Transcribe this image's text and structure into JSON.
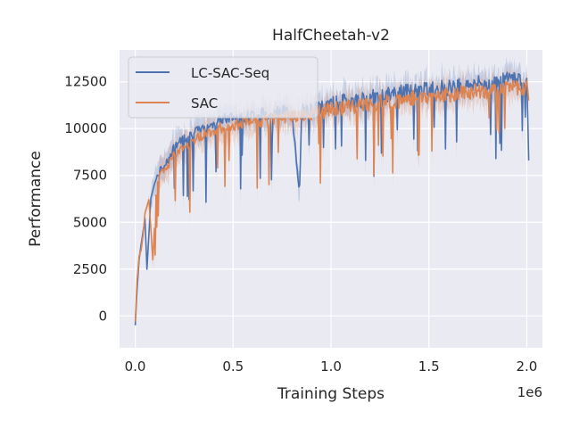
{
  "chart_data": {
    "type": "line",
    "title": "HalfCheetah-v2",
    "xlabel": "Training Steps",
    "ylabel": "Performance",
    "x_offset_label": "1e6",
    "xlim": [
      -0.08,
      2.08
    ],
    "ylim": [
      -1700,
      14200
    ],
    "xticks": [
      0.0,
      0.5,
      1.0,
      1.5,
      2.0
    ],
    "xtick_labels": [
      "0.0",
      "0.5",
      "1.0",
      "1.5",
      "2.0"
    ],
    "yticks": [
      0,
      2500,
      5000,
      7500,
      10000,
      12500
    ],
    "ytick_labels": [
      "0",
      "2500",
      "5000",
      "7500",
      "10000",
      "12500"
    ],
    "grid": true,
    "legend_position": "top-left",
    "x_scale_factor": 1000000,
    "series": [
      {
        "name": "LC-SAC-Seq",
        "color": "#4c72b0",
        "band_color": "#4c72b0",
        "x": [
          0.0,
          0.01,
          0.02,
          0.03,
          0.04,
          0.05,
          0.06,
          0.08,
          0.1,
          0.12,
          0.15,
          0.18,
          0.2,
          0.25,
          0.3,
          0.35,
          0.4,
          0.45,
          0.5,
          0.55,
          0.6,
          0.65,
          0.7,
          0.75,
          0.8,
          0.84,
          0.85,
          0.86,
          0.9,
          0.95,
          1.0,
          1.05,
          1.1,
          1.15,
          1.2,
          1.25,
          1.3,
          1.35,
          1.4,
          1.45,
          1.5,
          1.55,
          1.6,
          1.65,
          1.7,
          1.75,
          1.8,
          1.85,
          1.9,
          1.95,
          2.0,
          2.01
        ],
        "y": [
          -500,
          1500,
          3000,
          3800,
          4500,
          5200,
          2500,
          6300,
          7100,
          7600,
          8100,
          8500,
          9100,
          9500,
          9800,
          10000,
          10300,
          10500,
          10600,
          10600,
          10700,
          10800,
          10900,
          10900,
          10900,
          6700,
          10800,
          11000,
          11000,
          11100,
          11300,
          11400,
          11500,
          11500,
          11700,
          11700,
          11800,
          11900,
          12000,
          12000,
          12100,
          12200,
          12200,
          12300,
          12300,
          12400,
          12400,
          12500,
          12600,
          12700,
          12600,
          8300
        ]
      },
      {
        "name": "SAC",
        "color": "#dd8452",
        "band_color": "#dd8452",
        "x": [
          0.0,
          0.01,
          0.02,
          0.03,
          0.04,
          0.05,
          0.07,
          0.09,
          0.11,
          0.13,
          0.15,
          0.18,
          0.2,
          0.25,
          0.3,
          0.35,
          0.4,
          0.45,
          0.5,
          0.55,
          0.6,
          0.65,
          0.7,
          0.75,
          0.8,
          0.85,
          0.9,
          0.95,
          1.0,
          1.05,
          1.1,
          1.15,
          1.2,
          1.25,
          1.3,
          1.35,
          1.4,
          1.45,
          1.5,
          1.55,
          1.6,
          1.65,
          1.7,
          1.75,
          1.8,
          1.85,
          1.9,
          1.95,
          2.0,
          2.01
        ],
        "y": [
          -300,
          2000,
          3200,
          3500,
          4300,
          5500,
          6200,
          3000,
          7200,
          7600,
          7700,
          8300,
          8600,
          9000,
          9400,
          9700,
          9900,
          10100,
          10200,
          10300,
          10400,
          10400,
          10500,
          10500,
          10600,
          10700,
          10800,
          10900,
          11000,
          11100,
          11200,
          11200,
          11300,
          11400,
          11500,
          11500,
          11600,
          11700,
          11700,
          11800,
          11800,
          11900,
          11900,
          12000,
          12000,
          12100,
          12100,
          12200,
          12200,
          11500
        ]
      }
    ]
  }
}
